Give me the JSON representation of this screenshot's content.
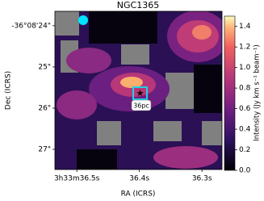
{
  "chart_data": {
    "type": "image",
    "title": "NGC1365",
    "xlabel": "RA (ICRS)",
    "ylabel": "Dec (ICRS)",
    "xlim": [
      36.535,
      36.268
    ],
    "xticks": [
      {
        "value": 36.5,
        "label": "3h33m36.5s"
      },
      {
        "value": 36.4,
        "label": "36.4s"
      },
      {
        "value": 36.3,
        "label": "36.3s"
      }
    ],
    "ylim": [
      27.49,
      23.65
    ],
    "yticks": [
      {
        "value": 24,
        "label": "-36°08'24\""
      },
      {
        "value": 25,
        "label": "25\""
      },
      {
        "value": 26,
        "label": "26\""
      },
      {
        "value": 27,
        "label": "27\""
      }
    ],
    "colorbar": {
      "label": "Intensity (Jy km s⁻¹ beam⁻¹)",
      "lim": [
        0,
        1.5
      ],
      "ticks": [
        {
          "value": 0,
          "label": "0.0"
        },
        0.2,
        0.4,
        0.6,
        0.8,
        {
          "value": 1,
          "label": "1.0"
        },
        1.2,
        1.4
      ]
    },
    "annotations": [
      "36pc"
    ]
  }
}
